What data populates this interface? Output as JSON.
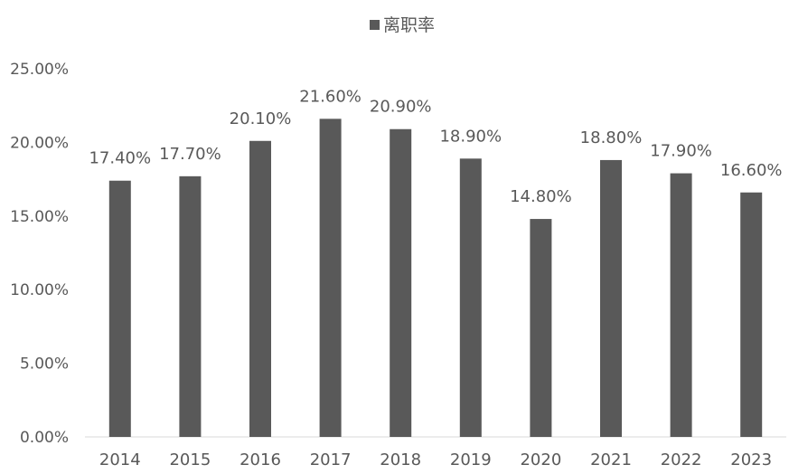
{
  "chart_data": {
    "type": "bar",
    "categories": [
      "2014",
      "2015",
      "2016",
      "2017",
      "2018",
      "2019",
      "2020",
      "2021",
      "2022",
      "2023"
    ],
    "series": [
      {
        "name": "离职率",
        "values": [
          17.4,
          17.7,
          20.1,
          21.6,
          20.9,
          18.9,
          14.8,
          18.8,
          17.9,
          16.6
        ],
        "labels": [
          "17.40%",
          "17.70%",
          "20.10%",
          "21.60%",
          "20.90%",
          "18.90%",
          "14.80%",
          "18.80%",
          "17.90%",
          "16.60%"
        ],
        "color": "#595959"
      }
    ],
    "yticks": [
      "0.00%",
      "5.00%",
      "10.00%",
      "15.00%",
      "20.00%",
      "25.00%"
    ],
    "ylim": [
      0,
      25
    ],
    "grid": false,
    "legend": "top-center"
  }
}
